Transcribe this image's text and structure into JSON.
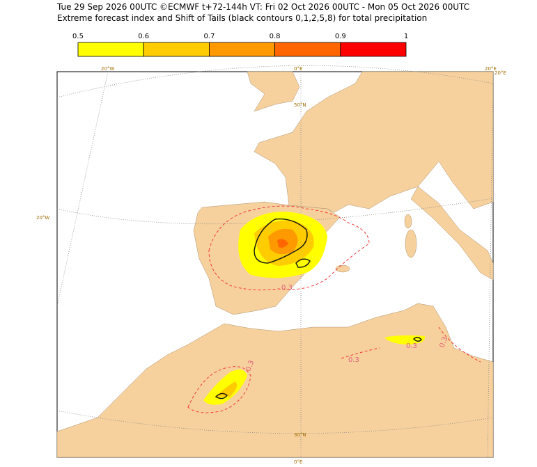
{
  "header": {
    "line1": "Tue 29 Sep 2026 00UTC ©ECMWF t+72-144h  VT: Fri 02 Oct 2026 00UTC - Mon 05 Oct 2026 00UTC",
    "line2": "Extreme forecast index and Shift of Tails (black contours 0,1,2,5,8) for total precipitation"
  },
  "colorbar": {
    "ticks": [
      "0.5",
      "0.6",
      "0.7",
      "0.8",
      "0.9",
      "1"
    ],
    "colors": [
      "#ffff00",
      "#ffcc00",
      "#ff9900",
      "#ff6600",
      "#ff0000"
    ]
  },
  "map": {
    "grid_labels": [
      "20°W",
      "0°E",
      "20°E",
      "20°E",
      "50°N",
      "20°W",
      "30°N",
      "0°E"
    ],
    "contour_labels": [
      "0.3",
      "0.3",
      "0.3",
      "0.3",
      "0.3"
    ]
  }
}
